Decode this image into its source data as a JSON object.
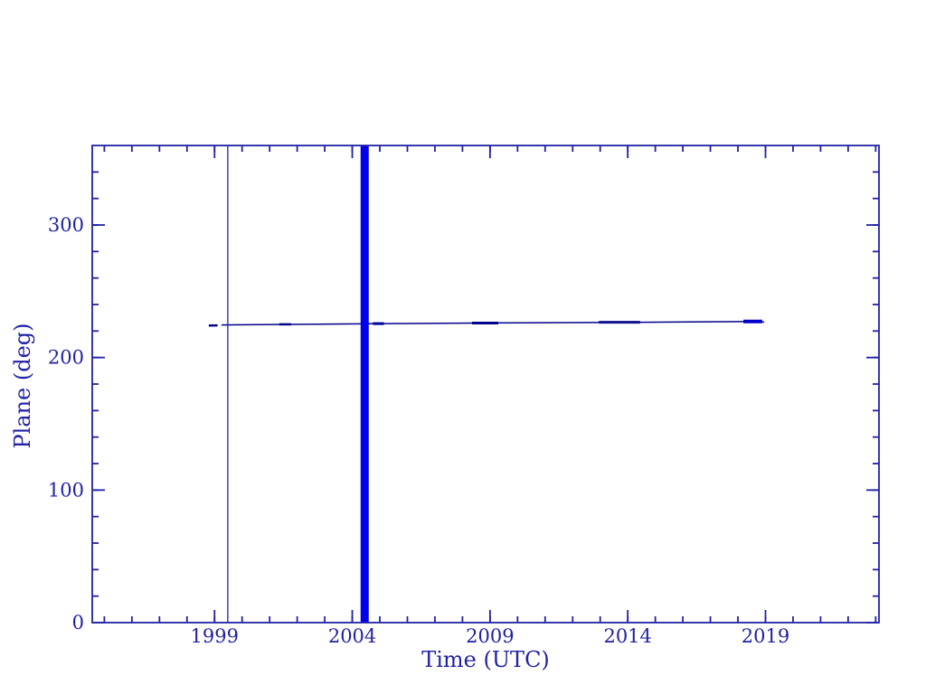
{
  "chart_data": {
    "type": "line",
    "title": "",
    "xlabel": "Time (UTC)",
    "ylabel": "Plane (deg)",
    "xlim": [
      1994.56,
      2023.12
    ],
    "ylim": [
      0,
      360
    ],
    "x_major_ticks": [
      1999,
      2004,
      2009,
      2014,
      2019
    ],
    "x_tick_labels": [
      "1999",
      "2004",
      "2009",
      "2014",
      "2019"
    ],
    "x_minor_step": 1,
    "y_major_ticks": [
      0,
      100,
      200,
      300
    ],
    "y_tick_labels": [
      "0",
      "100",
      "200",
      "300"
    ],
    "y_minor_step": 20,
    "grid": false,
    "legend": null,
    "series": [
      {
        "name": "plane-angle-line",
        "color": "#00008b",
        "width": 1.5,
        "points": [
          [
            1999.25,
            224.6
          ],
          [
            2004.3,
            225.4
          ],
          [
            2004.6,
            225.5
          ],
          [
            2009.0,
            226.1
          ],
          [
            2014.0,
            226.6
          ],
          [
            2018.85,
            227.15
          ],
          [
            2018.95,
            226.6
          ]
        ]
      },
      {
        "name": "leading-dash-segment",
        "color": "#00008b",
        "width": 2.5,
        "points": [
          [
            1998.79,
            224.2
          ],
          [
            1999.11,
            224.25
          ]
        ]
      }
    ],
    "bold_segments": [
      {
        "x1": 2001.35,
        "x2": 2001.78,
        "value": 225.05,
        "width": 2.5,
        "color": "#00008b"
      },
      {
        "x1": 2004.75,
        "x2": 2005.15,
        "value": 225.6,
        "width": 3.0,
        "color": "#000099"
      },
      {
        "x1": 2008.35,
        "x2": 2009.3,
        "value": 226.05,
        "width": 3.0,
        "color": "#00008b"
      },
      {
        "x1": 2012.95,
        "x2": 2014.45,
        "value": 226.6,
        "width": 3.0,
        "color": "#10108f"
      },
      {
        "x1": 2018.2,
        "x2": 2018.88,
        "value": 227.2,
        "width": 4.0,
        "color": "#0000c8"
      }
    ],
    "vlines": [
      {
        "name": "thin-vertical-line",
        "x": 1999.48,
        "color": "#2222a4",
        "width": 1.3
      },
      {
        "name": "thick-vertical-bar",
        "x": 2004.45,
        "color": "#0000ee",
        "width": 9.0
      }
    ],
    "colors": {
      "axis": "#2222a4",
      "tick_text": "#2222a4",
      "background": "#ffffff"
    }
  }
}
